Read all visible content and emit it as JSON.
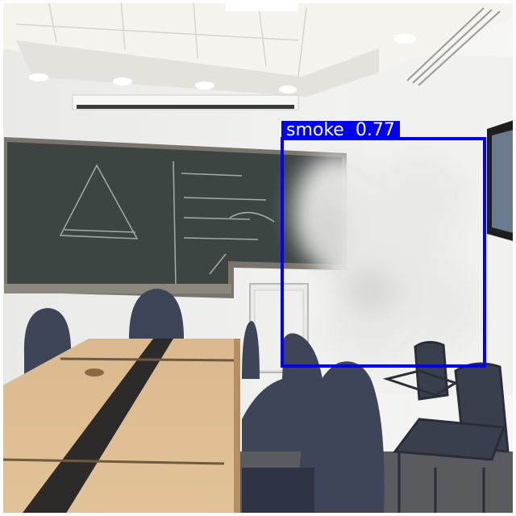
{
  "detections": [
    {
      "class": "smoke",
      "confidence": "0.77",
      "color": "#0000ff"
    }
  ],
  "colors": {
    "wall": "#f3f3f1",
    "ceiling": "#f4f3ef",
    "blackboard": "#3d4543",
    "table_wood": "#d8b78a",
    "table_strip": "#2c2b29",
    "chair": "#3f4559",
    "smoke": "#e8e8e6"
  }
}
